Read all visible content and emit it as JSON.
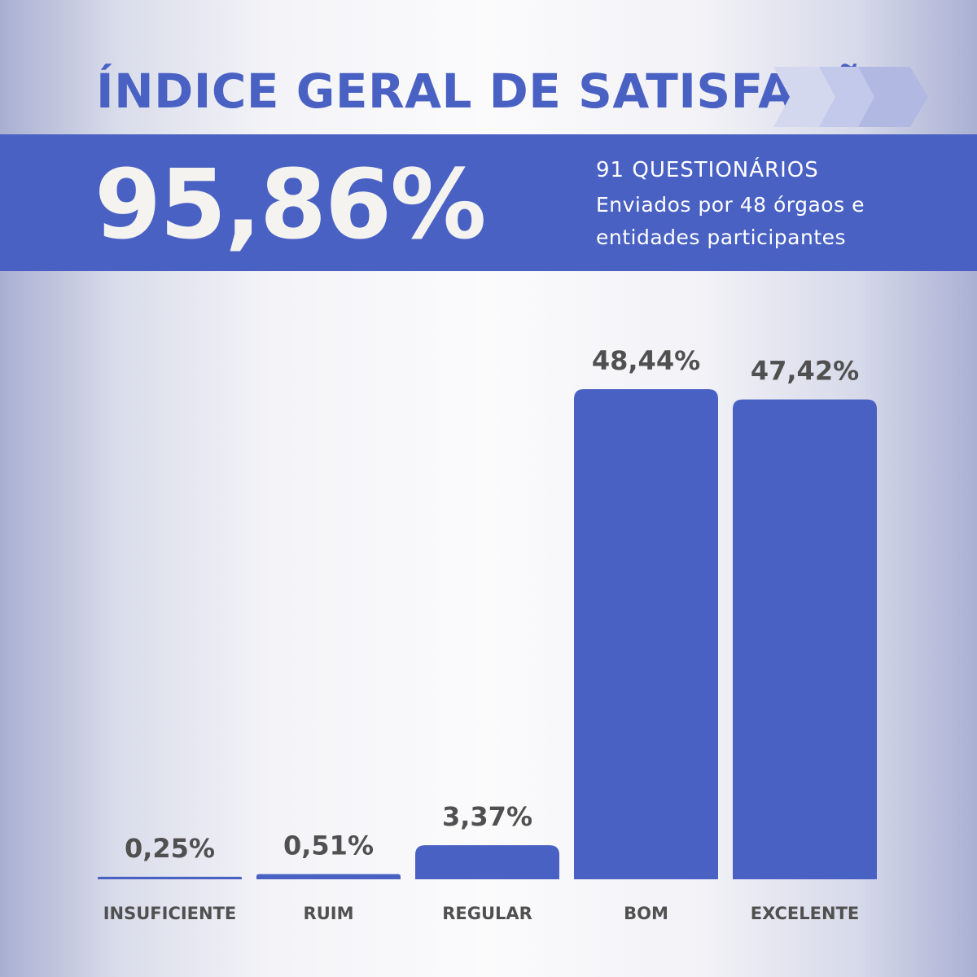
{
  "colors": {
    "accent": "#4a61c4",
    "label": "#505050",
    "headline": "#f5f3f0"
  },
  "header": {
    "title": "ÍNDICE GERAL DE SATISFAÇÃO",
    "chevron_icon": "triple-chevron-right-icon"
  },
  "summary": {
    "index_value": "95,86%",
    "questionnaires": "91 QUESTIONÁRIOS",
    "description": "Enviados por 48 órgaos e entidades participantes"
  },
  "chart_data": {
    "type": "bar",
    "title": "",
    "xlabel": "",
    "ylabel": "",
    "categories": [
      "INSUFICIENTE",
      "RUIM",
      "REGULAR",
      "BOM",
      "EXCELENTE"
    ],
    "values": [
      0.25,
      0.51,
      3.37,
      48.44,
      47.42
    ],
    "value_labels": [
      "0,25%",
      "0,51%",
      "3,37%",
      "48,44%",
      "47,42%"
    ],
    "ylim": [
      0,
      50
    ],
    "grid": false
  }
}
